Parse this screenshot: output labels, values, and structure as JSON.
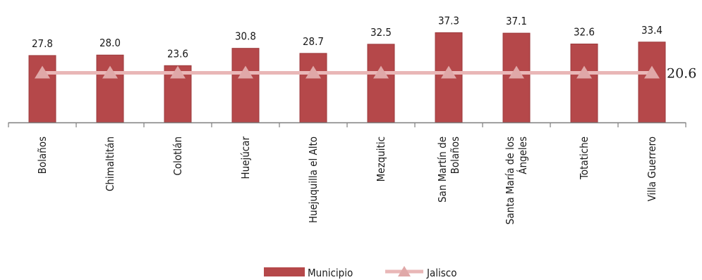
{
  "colors": {
    "bar": "#b5484a",
    "bar_stroke": "#9c3a3c",
    "line": "#e9b7b7",
    "marker": "#e0a8a8",
    "axis": "#7f7f7f"
  },
  "chart_data": {
    "type": "bar",
    "categories": [
      [
        "Bolaños"
      ],
      [
        "Chimaltitán"
      ],
      [
        "Colotlán"
      ],
      [
        "Huejúcar"
      ],
      [
        "Huejuquilla el Alto"
      ],
      [
        "Mezquitic"
      ],
      [
        "San Martín de",
        "Bolaños"
      ],
      [
        "Santa María de los",
        "Ángeles"
      ],
      [
        "Totatiche"
      ],
      [
        "Villa Guerrero"
      ]
    ],
    "series": [
      {
        "name": "Municipio",
        "kind": "bar",
        "values": [
          27.8,
          28.0,
          23.6,
          30.8,
          28.7,
          32.5,
          37.3,
          37.1,
          32.6,
          33.4
        ],
        "labels": [
          "27.8",
          "28.0",
          "23.6",
          "30.8",
          "28.7",
          "32.5",
          "37.3",
          "37.1",
          "32.6",
          "33.4"
        ]
      },
      {
        "name": "Jalisco",
        "kind": "line",
        "marker": "triangle",
        "value": 20.6,
        "label": "20.6"
      }
    ],
    "legend": {
      "placement": "bottom",
      "entries": [
        "Municipio",
        "Jalisco"
      ]
    },
    "grid": false
  }
}
